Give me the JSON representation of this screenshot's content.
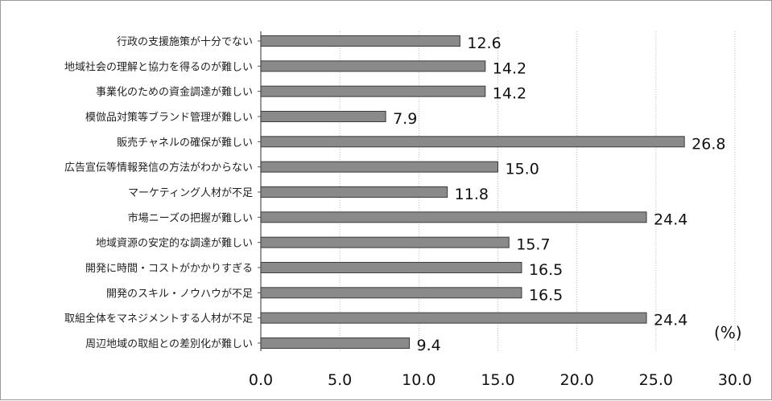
{
  "chart_data": {
    "type": "bar",
    "orientation": "horizontal",
    "categories": [
      "行政の支援施策が十分でない",
      "地域社会の理解と協力を得るのが難しい",
      "事業化のための資金調達が難しい",
      "模倣品対策等ブランド管理が難しい",
      "販売チャネルの確保が難しい",
      "広告宣伝等情報発信の方法がわからない",
      "マーケティング人材が不足",
      "市場ニーズの把握が難しい",
      "地域資源の安定的な調達が難しい",
      "開発に時間・コストがかかりすぎる",
      "開発のスキル・ノウハウが不足",
      "取組全体をマネジメントする人材が不足",
      "周辺地域の取組との差別化が難しい"
    ],
    "values": [
      12.6,
      14.2,
      14.2,
      7.9,
      26.8,
      15.0,
      11.8,
      24.4,
      15.7,
      16.5,
      16.5,
      24.4,
      9.4
    ],
    "value_labels": [
      "12.6",
      "14.2",
      "14.2",
      "7.9",
      "26.8",
      "15.0",
      "11.8",
      "24.4",
      "15.7",
      "16.5",
      "16.5",
      "24.4",
      "9.4"
    ],
    "x_ticks": [
      "0.0",
      "5.0",
      "10.0",
      "15.0",
      "20.0",
      "25.0",
      "30.0"
    ],
    "xlim": [
      0,
      30
    ],
    "unit": "(%)",
    "grid": true,
    "bar_color": "#8a8a8a",
    "bar_edge_color": "#3a3a3a"
  }
}
